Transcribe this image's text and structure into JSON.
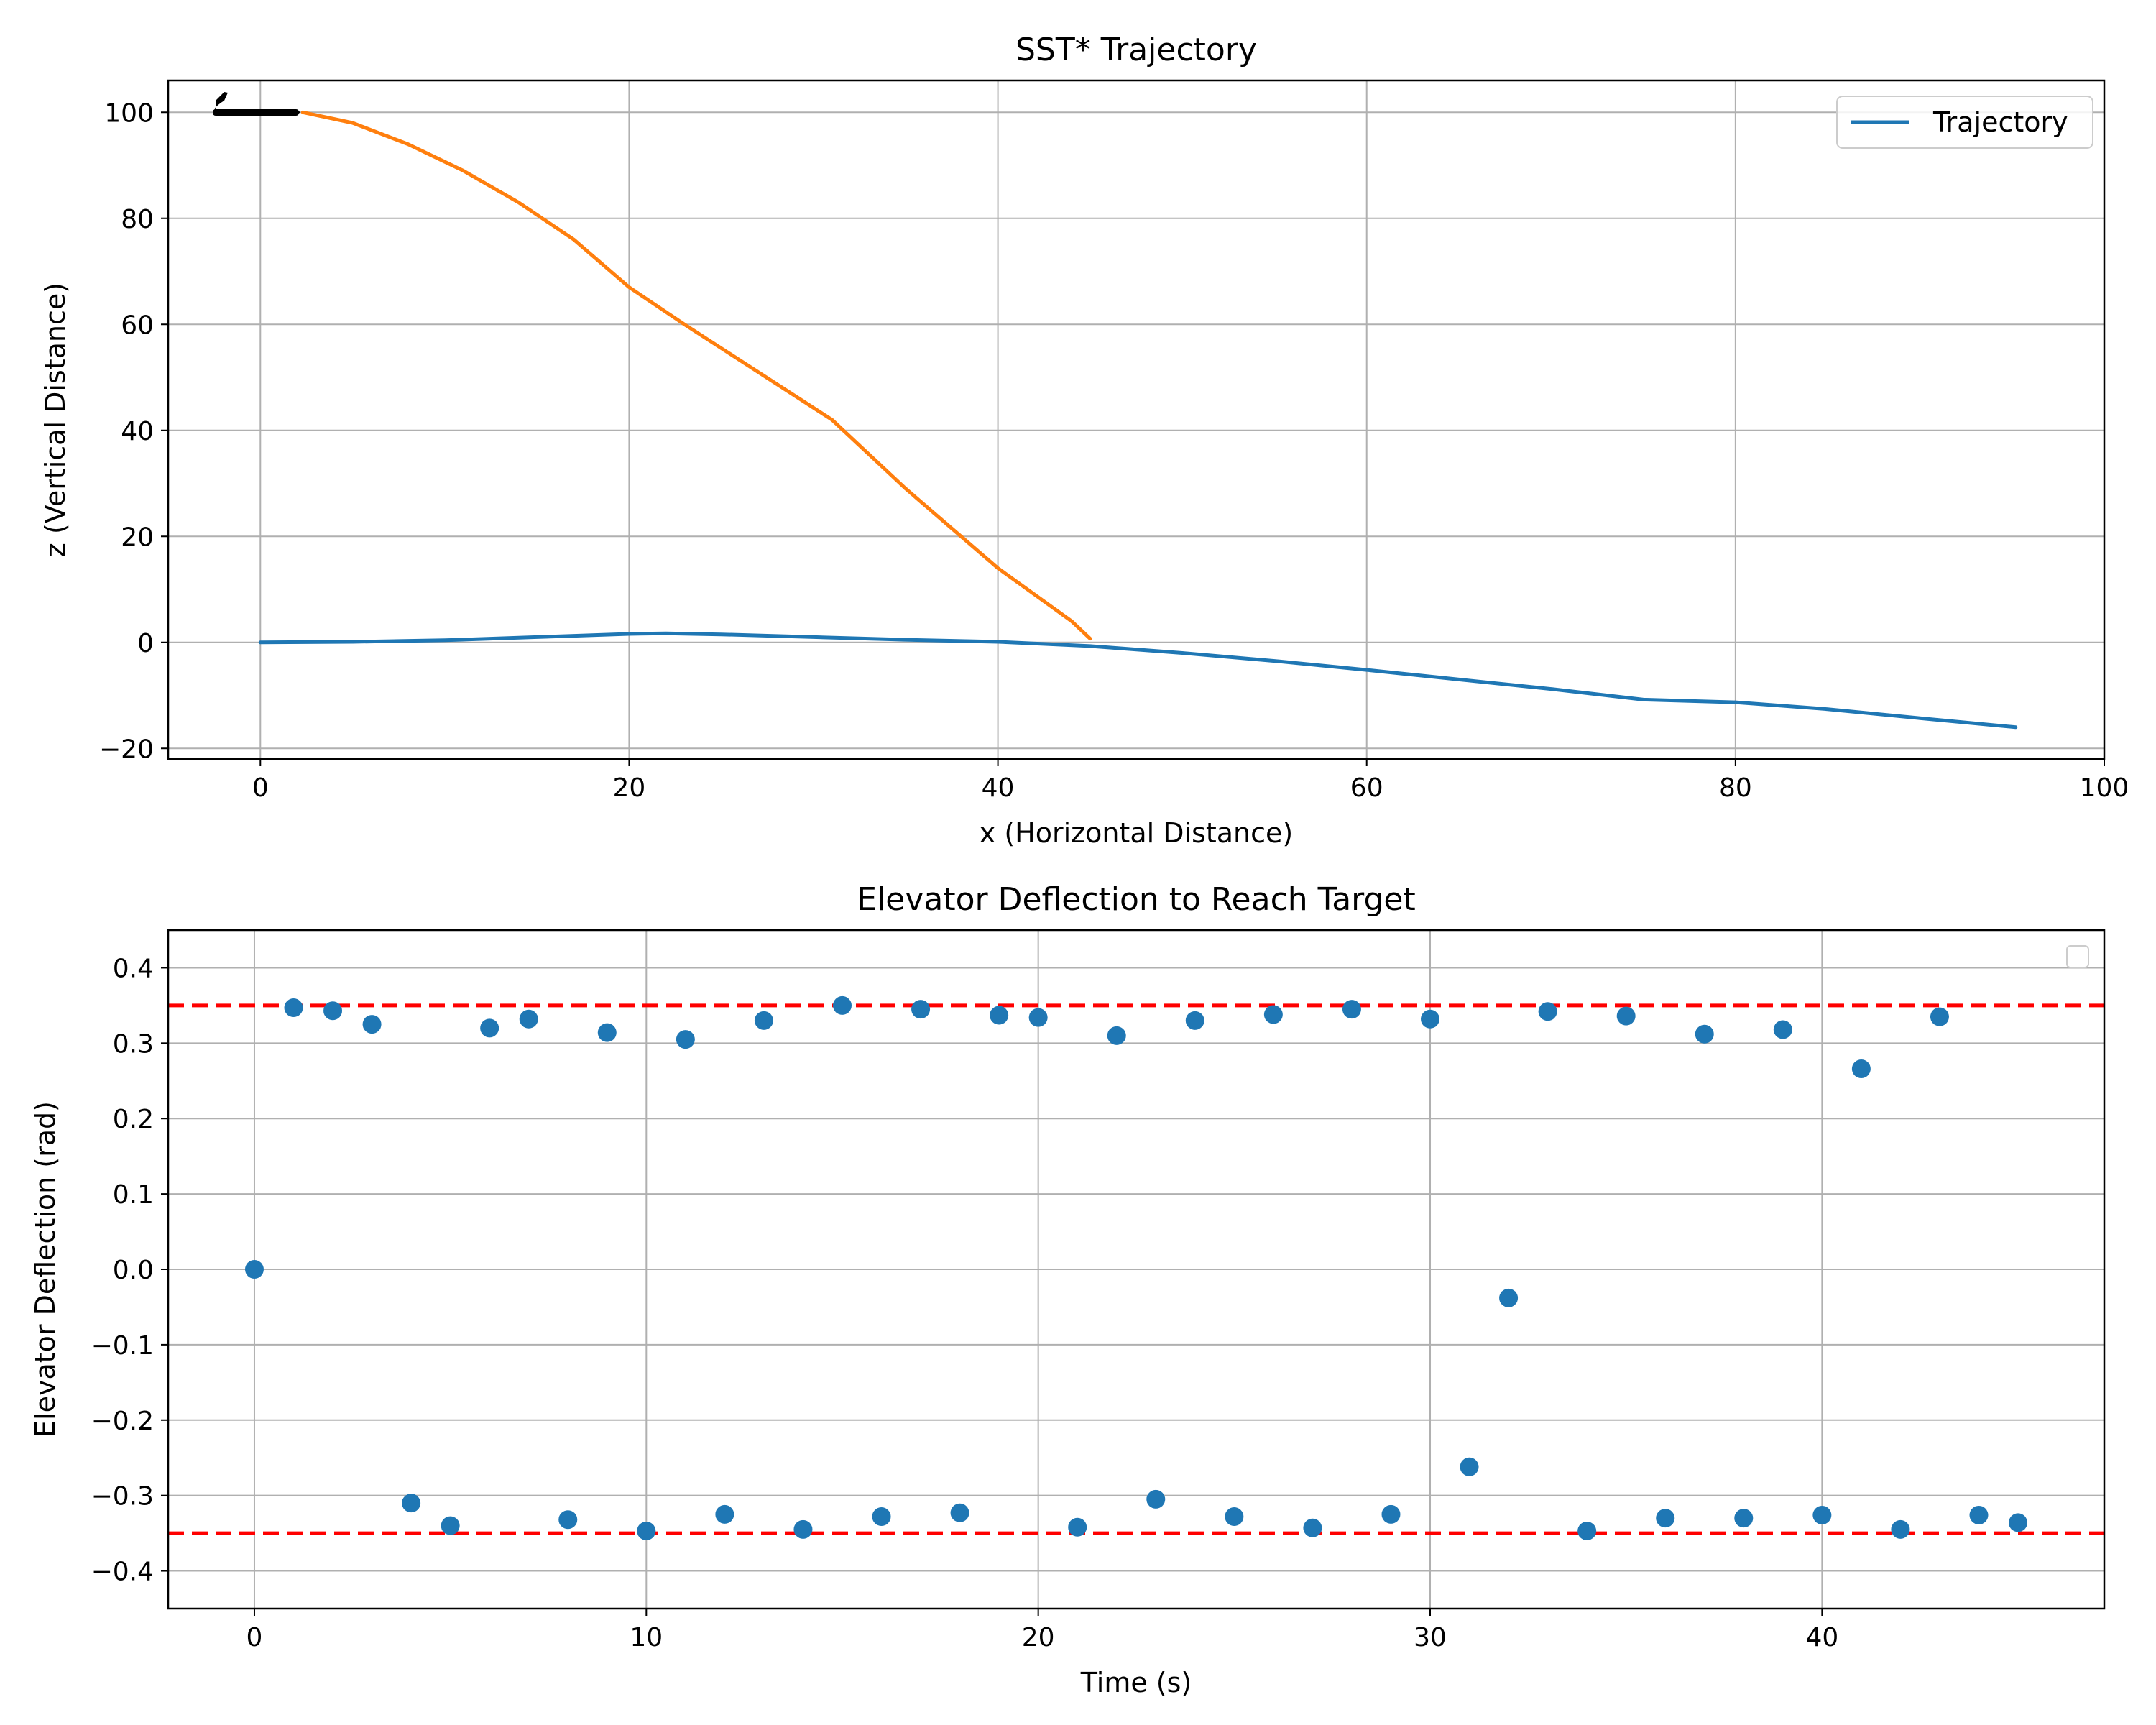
{
  "chart_data": [
    {
      "type": "line",
      "title": "SST* Trajectory",
      "xlabel": "x (Horizontal Distance)",
      "ylabel": "z (Vertical Distance)",
      "xlim": [
        -5,
        100
      ],
      "ylim": [
        -22,
        106
      ],
      "xticks": [
        0,
        20,
        40,
        60,
        80,
        100
      ],
      "yticks": [
        -20,
        0,
        20,
        40,
        60,
        80,
        100
      ],
      "grid": true,
      "legend": {
        "position": "top-right",
        "entries": [
          "Trajectory"
        ]
      },
      "series": [
        {
          "name": "Trajectory",
          "color": "#1f77b4",
          "x": [
            0,
            5,
            10,
            15,
            20,
            22,
            25,
            30,
            35,
            40,
            45,
            50,
            55,
            60,
            65,
            70,
            75,
            80,
            85,
            90,
            95.2
          ],
          "y": [
            0,
            0.1,
            0.4,
            1.0,
            1.6,
            1.7,
            1.5,
            1.0,
            0.5,
            0.1,
            -0.7,
            -2.0,
            -3.5,
            -5.2,
            -7.0,
            -8.8,
            -10.8,
            -11.3,
            -12.6,
            -14.3,
            -16.0
          ]
        },
        {
          "name": "",
          "color": "#ff7f0e",
          "x": [
            2.3,
            5,
            8,
            11,
            14,
            17,
            20,
            23,
            27,
            31,
            35,
            38,
            40,
            42,
            44,
            45
          ],
          "y": [
            100,
            98,
            94,
            89,
            83,
            76,
            67,
            60,
            51,
            42,
            29,
            20,
            14,
            9,
            4,
            0.7
          ]
        }
      ],
      "annotation_icon": "airplane-icon"
    },
    {
      "type": "scatter",
      "title": "Elevator Deflection to Reach Target",
      "xlabel": "Time (s)",
      "ylabel": "Elevator Deflection (rad)",
      "xlim": [
        -2.2,
        47.2
      ],
      "ylim": [
        -0.45,
        0.45
      ],
      "xticks": [
        0,
        10,
        20,
        30,
        40
      ],
      "yticks": [
        -0.4,
        -0.3,
        -0.2,
        -0.1,
        0.0,
        0.1,
        0.2,
        0.3,
        0.4
      ],
      "grid": true,
      "legend": {
        "position": "top-right",
        "entries": []
      },
      "limit_lines": [
        0.35,
        -0.35
      ],
      "series": [
        {
          "color": "#1f77b4",
          "x": [
            0,
            1,
            2,
            3,
            4,
            5,
            6,
            7,
            8,
            9,
            10,
            11,
            12,
            13,
            14,
            15,
            16,
            17,
            18,
            19,
            20,
            21,
            22,
            23,
            24,
            25,
            26,
            27,
            28,
            29,
            30,
            31,
            32,
            33,
            34,
            35,
            36,
            37,
            38,
            39,
            40,
            41,
            42,
            43,
            44,
            45
          ],
          "y": [
            0.0,
            0.347,
            0.343,
            0.325,
            -0.31,
            -0.34,
            0.32,
            0.332,
            -0.332,
            0.314,
            -0.347,
            0.305,
            -0.325,
            0.33,
            -0.345,
            0.35,
            -0.328,
            0.345,
            -0.323,
            0.337,
            0.334,
            -0.342,
            0.31,
            -0.305,
            0.33,
            -0.328,
            0.338,
            -0.343,
            0.345,
            -0.325,
            0.332,
            -0.262,
            -0.038,
            0.342,
            -0.347,
            0.336,
            -0.33,
            0.312,
            -0.33,
            0.318,
            -0.326,
            0.266,
            -0.345,
            0.335,
            -0.326,
            -0.336
          ]
        }
      ],
      "limit_color": "#ff0000"
    }
  ]
}
